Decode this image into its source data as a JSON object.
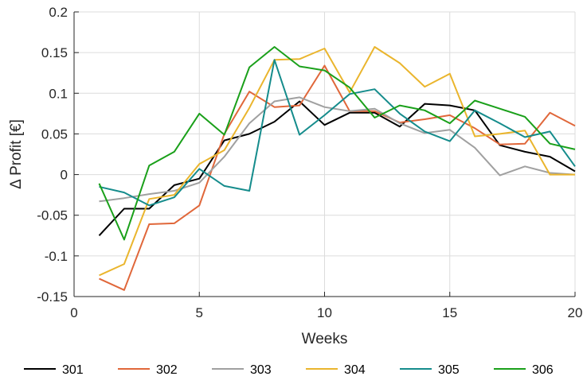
{
  "chart_data": {
    "type": "line",
    "title": "",
    "xlabel": "Weeks",
    "ylabel": "Δ Profit [€]",
    "xlim": [
      0,
      20
    ],
    "ylim": [
      -0.15,
      0.2
    ],
    "xticks": [
      0,
      5,
      10,
      15,
      20
    ],
    "yticks": [
      -0.15,
      -0.1,
      -0.05,
      0,
      0.05,
      0.1,
      0.15,
      0.2
    ],
    "xtick_labels": [
      "0",
      "5",
      "10",
      "15",
      "20"
    ],
    "ytick_labels": [
      "-0.15",
      "-0.1",
      "-0.05",
      "0",
      "0.05",
      "0.1",
      "0.15",
      "0.2"
    ],
    "grid": true,
    "legend_position": "bottom",
    "x": [
      1,
      2,
      3,
      4,
      5,
      6,
      7,
      8,
      9,
      10,
      11,
      12,
      13,
      14,
      15,
      16,
      17,
      18,
      19,
      20
    ],
    "series": [
      {
        "name": "301",
        "color": "#000000",
        "values": [
          -0.075,
          -0.042,
          -0.042,
          -0.013,
          -0.005,
          0.042,
          0.05,
          0.065,
          0.09,
          0.061,
          0.076,
          0.076,
          0.059,
          0.087,
          0.085,
          0.079,
          0.036,
          0.028,
          0.022,
          0.004
        ]
      },
      {
        "name": "302",
        "color": "#e0673a",
        "values": [
          -0.128,
          -0.142,
          -0.061,
          -0.06,
          -0.038,
          0.05,
          0.102,
          0.083,
          0.085,
          0.134,
          0.078,
          0.078,
          0.064,
          0.068,
          0.073,
          0.057,
          0.037,
          0.038,
          0.076,
          0.06
        ]
      },
      {
        "name": "303",
        "color": "#a0a0a0",
        "values": [
          -0.033,
          -0.029,
          -0.024,
          -0.02,
          -0.01,
          0.022,
          0.063,
          0.09,
          0.095,
          0.083,
          0.078,
          0.081,
          0.063,
          0.051,
          0.055,
          0.033,
          -0.001,
          0.01,
          0.002,
          0.0
        ]
      },
      {
        "name": "304",
        "color": "#eab52d",
        "values": [
          -0.124,
          -0.11,
          -0.03,
          -0.025,
          0.013,
          0.03,
          0.082,
          0.141,
          0.142,
          0.155,
          0.101,
          0.157,
          0.137,
          0.108,
          0.124,
          0.047,
          0.05,
          0.054,
          0.0,
          0.0
        ]
      },
      {
        "name": "305",
        "color": "#158c8c",
        "values": [
          -0.015,
          -0.022,
          -0.038,
          -0.028,
          0.007,
          -0.014,
          -0.02,
          0.141,
          0.049,
          0.073,
          0.099,
          0.105,
          0.075,
          0.053,
          0.041,
          0.079,
          0.063,
          0.046,
          0.053,
          0.01
        ]
      },
      {
        "name": "306",
        "color": "#1aa01a",
        "values": [
          -0.011,
          -0.08,
          0.011,
          0.028,
          0.075,
          0.049,
          0.132,
          0.157,
          0.133,
          0.128,
          0.107,
          0.07,
          0.085,
          0.079,
          0.063,
          0.091,
          0.081,
          0.071,
          0.038,
          0.031
        ]
      }
    ]
  }
}
